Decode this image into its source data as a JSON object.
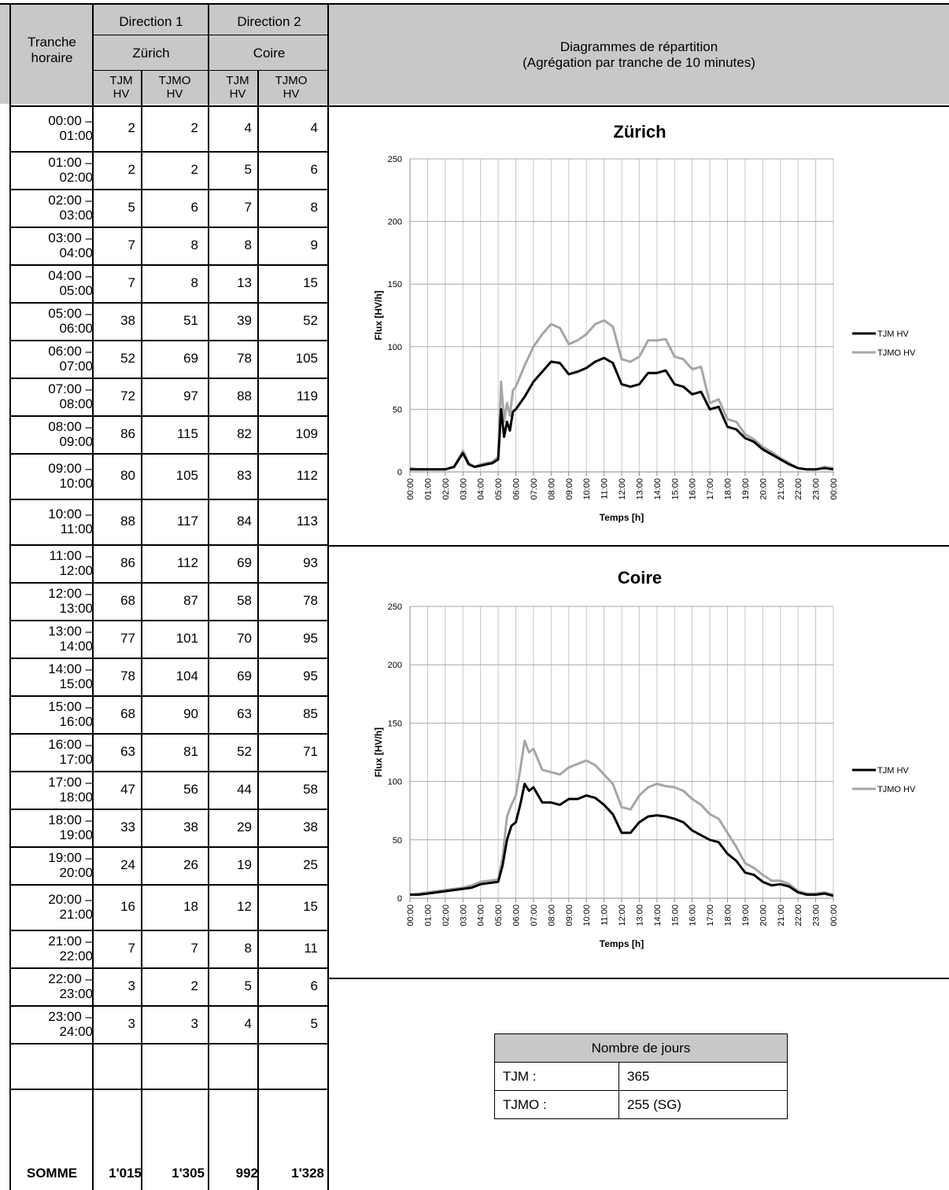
{
  "header": {
    "tranche_horaire": "Tranche horaire",
    "direction1": "Direction 1",
    "direction1_city": "Zürich",
    "direction2": "Direction 2",
    "direction2_city": "Coire",
    "col_tjm": "TJM HV",
    "col_tjmo": "TJMO HV",
    "diagram_title_line1": "Diagrammes de répartition",
    "diagram_title_line2": "(Agrégation par tranche de 10 minutes)"
  },
  "table": {
    "rows": [
      {
        "start": "00:00 –",
        "end": "01:00",
        "z_tjm": "2",
        "z_tjmo": "2",
        "c_tjm": "4",
        "c_tjmo": "4"
      },
      {
        "start": "01:00 –",
        "end": "02:00",
        "z_tjm": "2",
        "z_tjmo": "2",
        "c_tjm": "5",
        "c_tjmo": "6"
      },
      {
        "start": "02:00 –",
        "end": "03:00",
        "z_tjm": "5",
        "z_tjmo": "6",
        "c_tjm": "7",
        "c_tjmo": "8"
      },
      {
        "start": "03:00 –",
        "end": "04:00",
        "z_tjm": "7",
        "z_tjmo": "8",
        "c_tjm": "8",
        "c_tjmo": "9"
      },
      {
        "start": "04:00 –",
        "end": "05:00",
        "z_tjm": "7",
        "z_tjmo": "8",
        "c_tjm": "13",
        "c_tjmo": "15"
      },
      {
        "start": "05:00 –",
        "end": "06:00",
        "z_tjm": "38",
        "z_tjmo": "51",
        "c_tjm": "39",
        "c_tjmo": "52"
      },
      {
        "start": "06:00 –",
        "end": "07:00",
        "z_tjm": "52",
        "z_tjmo": "69",
        "c_tjm": "78",
        "c_tjmo": "105"
      },
      {
        "start": "07:00 –",
        "end": "08:00",
        "z_tjm": "72",
        "z_tjmo": "97",
        "c_tjm": "88",
        "c_tjmo": "119"
      },
      {
        "start": "08:00 –",
        "end": "09:00",
        "z_tjm": "86",
        "z_tjmo": "115",
        "c_tjm": "82",
        "c_tjmo": "109"
      },
      {
        "start": "09:00 –",
        "end": "10:00",
        "z_tjm": "80",
        "z_tjmo": "105",
        "c_tjm": "83",
        "c_tjmo": "112"
      },
      {
        "start": "10:00 –",
        "end": "11:00",
        "z_tjm": "88",
        "z_tjmo": "117",
        "c_tjm": "84",
        "c_tjmo": "113"
      },
      {
        "start": "11:00 –",
        "end": "12:00",
        "z_tjm": "86",
        "z_tjmo": "112",
        "c_tjm": "69",
        "c_tjmo": "93"
      },
      {
        "start": "12:00 –",
        "end": "13:00",
        "z_tjm": "68",
        "z_tjmo": "87",
        "c_tjm": "58",
        "c_tjmo": "78"
      },
      {
        "start": "13:00 –",
        "end": "14:00",
        "z_tjm": "77",
        "z_tjmo": "101",
        "c_tjm": "70",
        "c_tjmo": "95"
      },
      {
        "start": "14:00 –",
        "end": "15:00",
        "z_tjm": "78",
        "z_tjmo": "104",
        "c_tjm": "69",
        "c_tjmo": "95"
      },
      {
        "start": "15:00 –",
        "end": "16:00",
        "z_tjm": "68",
        "z_tjmo": "90",
        "c_tjm": "63",
        "c_tjmo": "85"
      },
      {
        "start": "16:00 –",
        "end": "17:00",
        "z_tjm": "63",
        "z_tjmo": "81",
        "c_tjm": "52",
        "c_tjmo": "71"
      },
      {
        "start": "17:00 –",
        "end": "18:00",
        "z_tjm": "47",
        "z_tjmo": "56",
        "c_tjm": "44",
        "c_tjmo": "58"
      },
      {
        "start": "18:00 –",
        "end": "19:00",
        "z_tjm": "33",
        "z_tjmo": "38",
        "c_tjm": "29",
        "c_tjmo": "38"
      },
      {
        "start": "19:00 –",
        "end": "20:00",
        "z_tjm": "24",
        "z_tjmo": "26",
        "c_tjm": "19",
        "c_tjmo": "25"
      },
      {
        "start": "20:00 –",
        "end": "21:00",
        "z_tjm": "16",
        "z_tjmo": "18",
        "c_tjm": "12",
        "c_tjmo": "15"
      },
      {
        "start": "21:00 –",
        "end": "22:00",
        "z_tjm": "7",
        "z_tjmo": "7",
        "c_tjm": "8",
        "c_tjmo": "11"
      },
      {
        "start": "22:00 –",
        "end": "23:00",
        "z_tjm": "3",
        "z_tjmo": "2",
        "c_tjm": "5",
        "c_tjmo": "6"
      },
      {
        "start": "23:00 –",
        "end": "24:00",
        "z_tjm": "3",
        "z_tjmo": "3",
        "c_tjm": "4",
        "c_tjmo": "5"
      }
    ],
    "sum": {
      "label": "SOMME",
      "z_tjm": "1'015",
      "z_tjmo": "1'305",
      "c_tjm": "992",
      "c_tjmo": "1'328"
    }
  },
  "days": {
    "title": "Nombre de jours",
    "tjm_label": "TJM :",
    "tjm_value": "365",
    "tjmo_label": "TJMO :",
    "tjmo_value": "255 (SG)"
  },
  "chart_data": [
    {
      "type": "line",
      "title": "Zürich",
      "xlabel": "Temps [h]",
      "ylabel": "Flux [HV/h]",
      "ylim": [
        0,
        250
      ],
      "yticks": [
        "0",
        "50",
        "100",
        "150",
        "200",
        "250"
      ],
      "xticks": [
        "00:00",
        "01:00",
        "02:00",
        "03:00",
        "04:00",
        "05:00",
        "06:00",
        "07:00",
        "08:00",
        "09:00",
        "10:00",
        "11:00",
        "12:00",
        "13:00",
        "14:00",
        "15:00",
        "16:00",
        "17:00",
        "18:00",
        "19:00",
        "20:00",
        "21:00",
        "22:00",
        "23:00",
        "00:00"
      ],
      "grid": true,
      "legend": "right",
      "x": [
        "00:00",
        "00:30",
        "01:00",
        "01:30",
        "02:00",
        "02:30",
        "03:00",
        "03:20",
        "03:40",
        "04:00",
        "04:20",
        "04:40",
        "05:00",
        "05:10",
        "05:20",
        "05:30",
        "05:40",
        "05:50",
        "06:00",
        "06:30",
        "07:00",
        "07:30",
        "08:00",
        "08:30",
        "09:00",
        "09:30",
        "10:00",
        "10:30",
        "11:00",
        "11:30",
        "12:00",
        "12:30",
        "13:00",
        "13:30",
        "14:00",
        "14:30",
        "15:00",
        "15:30",
        "16:00",
        "16:30",
        "17:00",
        "17:30",
        "18:00",
        "18:30",
        "19:00",
        "19:30",
        "20:00",
        "20:30",
        "21:00",
        "21:30",
        "22:00",
        "22:30",
        "23:00",
        "23:30",
        "24:00"
      ],
      "series": [
        {
          "name": "TJM HV",
          "color": "#000000",
          "values": [
            2,
            2,
            2,
            2,
            2,
            4,
            15,
            6,
            4,
            5,
            6,
            7,
            10,
            50,
            28,
            40,
            33,
            48,
            50,
            60,
            72,
            80,
            88,
            87,
            78,
            80,
            83,
            88,
            91,
            87,
            70,
            68,
            70,
            79,
            79,
            81,
            70,
            68,
            62,
            64,
            50,
            52,
            36,
            34,
            27,
            24,
            18,
            14,
            10,
            6,
            3,
            2,
            2,
            3,
            2
          ]
        },
        {
          "name": "TJMO HV",
          "color": "#a6a6a6",
          "values": [
            3,
            2,
            2,
            2,
            2,
            4,
            17,
            7,
            4,
            6,
            7,
            8,
            12,
            72,
            40,
            55,
            45,
            65,
            68,
            85,
            100,
            110,
            118,
            115,
            102,
            105,
            110,
            118,
            121,
            116,
            90,
            88,
            92,
            105,
            105,
            106,
            92,
            90,
            82,
            84,
            55,
            58,
            42,
            40,
            30,
            26,
            20,
            16,
            11,
            7,
            3,
            2,
            2,
            4,
            3
          ]
        }
      ]
    },
    {
      "type": "line",
      "title": "Coire",
      "xlabel": "Temps [h]",
      "ylabel": "Flux [HV/h]",
      "ylim": [
        0,
        250
      ],
      "yticks": [
        "0",
        "50",
        "100",
        "150",
        "200",
        "250"
      ],
      "xticks": [
        "00:00",
        "01:00",
        "02:00",
        "03:00",
        "04:00",
        "05:00",
        "06:00",
        "07:00",
        "08:00",
        "09:00",
        "10:00",
        "11:00",
        "12:00",
        "13:00",
        "14:00",
        "15:00",
        "16:00",
        "17:00",
        "18:00",
        "19:00",
        "20:00",
        "21:00",
        "22:00",
        "23:00",
        "00:00"
      ],
      "grid": true,
      "legend": "right",
      "x": [
        "00:00",
        "00:30",
        "01:00",
        "01:30",
        "02:00",
        "02:30",
        "03:00",
        "03:30",
        "04:00",
        "04:30",
        "05:00",
        "05:15",
        "05:30",
        "05:45",
        "06:00",
        "06:15",
        "06:30",
        "06:45",
        "07:00",
        "07:30",
        "08:00",
        "08:30",
        "09:00",
        "09:30",
        "10:00",
        "10:30",
        "11:00",
        "11:30",
        "12:00",
        "12:30",
        "13:00",
        "13:30",
        "14:00",
        "14:30",
        "15:00",
        "15:30",
        "16:00",
        "16:30",
        "17:00",
        "17:30",
        "18:00",
        "18:30",
        "19:00",
        "19:30",
        "20:00",
        "20:30",
        "21:00",
        "21:30",
        "22:00",
        "22:30",
        "23:00",
        "23:30",
        "24:00"
      ],
      "series": [
        {
          "name": "TJM HV",
          "color": "#000000",
          "values": [
            3,
            3,
            4,
            5,
            6,
            7,
            8,
            9,
            12,
            13,
            14,
            28,
            50,
            62,
            65,
            80,
            98,
            92,
            95,
            82,
            82,
            80,
            85,
            85,
            88,
            86,
            80,
            72,
            56,
            56,
            65,
            70,
            71,
            70,
            68,
            65,
            58,
            54,
            50,
            48,
            38,
            32,
            22,
            20,
            14,
            11,
            12,
            10,
            5,
            3,
            3,
            4,
            2
          ]
        },
        {
          "name": "TJMO HV",
          "color": "#a6a6a6",
          "values": [
            3,
            4,
            5,
            6,
            7,
            8,
            9,
            11,
            14,
            15,
            16,
            35,
            70,
            80,
            88,
            110,
            135,
            125,
            128,
            110,
            108,
            106,
            112,
            115,
            118,
            114,
            106,
            98,
            78,
            76,
            88,
            95,
            98,
            96,
            95,
            92,
            85,
            80,
            72,
            68,
            56,
            44,
            30,
            26,
            20,
            15,
            15,
            12,
            6,
            4,
            4,
            5,
            3
          ]
        }
      ]
    }
  ]
}
